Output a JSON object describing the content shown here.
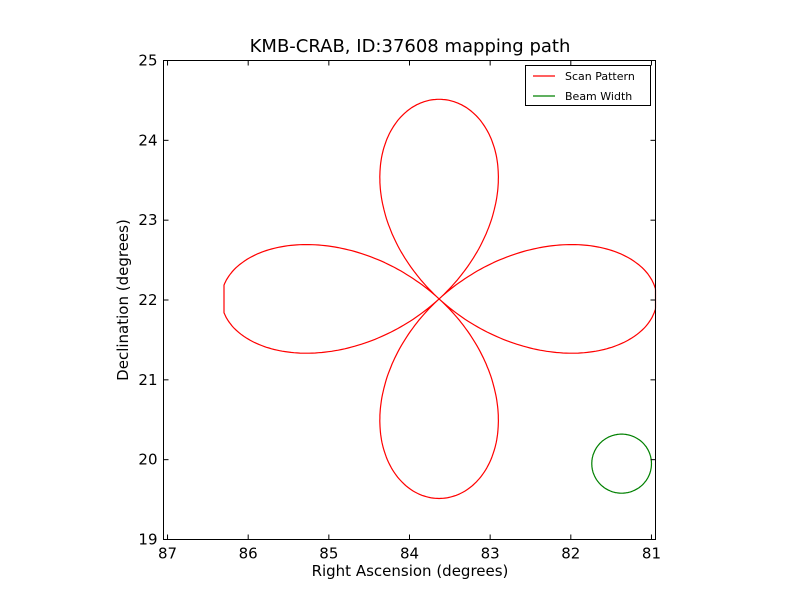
{
  "chart_data": {
    "type": "line",
    "title": "KMB-CRAB, ID:37608 mapping path",
    "xlabel": "Right Ascension (degrees)",
    "ylabel": "Declination (degrees)",
    "xlim": [
      87.05,
      80.95
    ],
    "ylim": [
      19,
      25
    ],
    "x_ticks": [
      87,
      86,
      85,
      84,
      83,
      82,
      81
    ],
    "y_ticks": [
      19,
      20,
      21,
      22,
      23,
      24,
      25
    ],
    "grid": false,
    "legend_position": "top-right",
    "series": [
      {
        "name": "Scan Pattern",
        "color": "#ff0000",
        "center": [
          83.633,
          22.014
        ],
        "petal_radius_ra": 2.7,
        "petal_radius_dec": 2.5,
        "petals": 4,
        "x_extent": [
          80.95,
          86.3
        ],
        "y_extent": [
          19.5,
          24.52
        ]
      },
      {
        "name": "Beam Width",
        "color": "#008000",
        "center": [
          81.37,
          19.95
        ],
        "radius_ra": 0.37,
        "radius_dec": 0.37
      }
    ]
  }
}
